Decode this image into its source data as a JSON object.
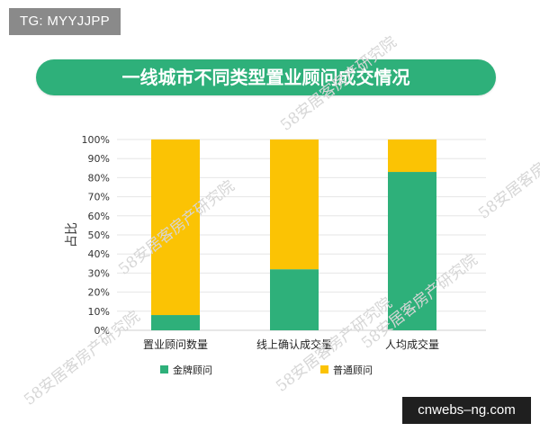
{
  "badges": {
    "top_left": "TG: MYYJJPP",
    "bottom_right": "cnwebs–ng.com"
  },
  "watermark": "58安居客房产研究院",
  "colors": {
    "title_bg": "#2eb07a",
    "gold": "#2eb07a",
    "regular": "#fbc304",
    "grid": "#e6e6e6"
  },
  "chart_data": {
    "type": "bar",
    "stacked": true,
    "title": "一线城市不同类型置业顾问成交情况",
    "ylabel": "占比",
    "xlabel": "",
    "categories": [
      "置业顾问数量",
      "线上确认成交量",
      "人均成交量"
    ],
    "yticks": [
      "0%",
      "10%",
      "20%",
      "30%",
      "40%",
      "50%",
      "60%",
      "70%",
      "80%",
      "90%",
      "100%"
    ],
    "ylim": [
      0,
      100
    ],
    "grid": true,
    "legend_position": "bottom",
    "series": [
      {
        "name": "金牌顾问",
        "values": [
          8,
          32,
          83
        ],
        "color": "#2eb07a"
      },
      {
        "name": "普通顾问",
        "values": [
          92,
          68,
          17
        ],
        "color": "#fbc304"
      }
    ]
  }
}
